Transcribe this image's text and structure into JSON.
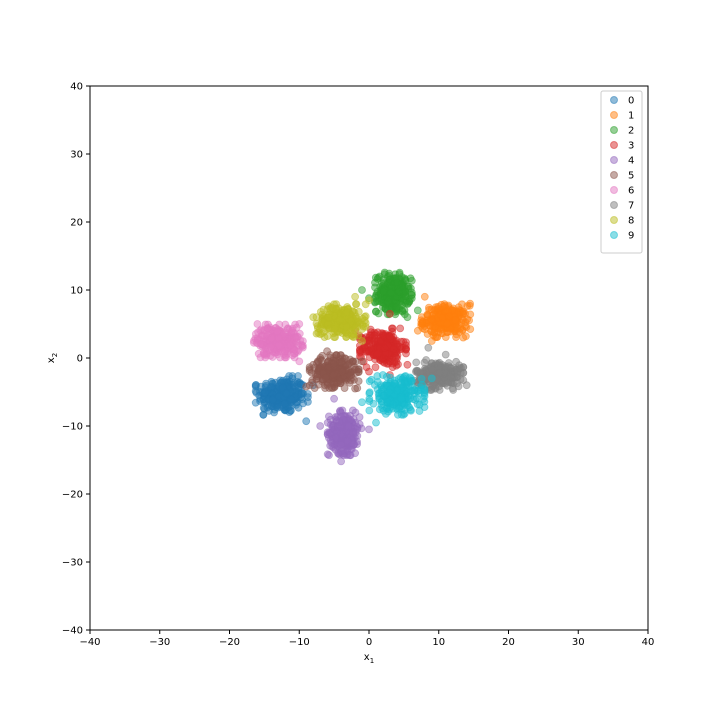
{
  "chart_data": {
    "type": "scatter",
    "title": "",
    "xlabel": "x",
    "xlabel_sub": "1",
    "ylabel": "x",
    "ylabel_sub": "2",
    "xlim": [
      -40,
      40
    ],
    "ylim": [
      -40,
      40
    ],
    "xticks": [
      -40,
      -30,
      -20,
      -10,
      0,
      10,
      20,
      30,
      40
    ],
    "yticks": [
      -40,
      -30,
      -20,
      -10,
      0,
      10,
      20,
      30,
      40
    ],
    "grid": false,
    "legend_position": "top-right",
    "marker_alpha": 0.5,
    "series": [
      {
        "name": "0",
        "color": "#1f77b4",
        "center": [
          -12.5,
          -5.5
        ],
        "spread": [
          1.7,
          1.3
        ],
        "outliers": [
          [
            -9,
            -9.3
          ],
          [
            -15,
            -7.5
          ],
          [
            -8,
            -4
          ],
          [
            -11,
            -3
          ],
          [
            -14,
            -3.5
          ]
        ]
      },
      {
        "name": "1",
        "color": "#ff7f0e",
        "center": [
          11,
          5.5
        ],
        "spread": [
          1.6,
          1.1
        ],
        "outliers": [
          [
            14.5,
            8
          ],
          [
            13.5,
            3
          ],
          [
            8,
            9
          ],
          [
            9,
            2.5
          ],
          [
            7,
            4
          ]
        ]
      },
      {
        "name": "2",
        "color": "#2ca02c",
        "center": [
          3.5,
          9.5
        ],
        "spread": [
          1.2,
          1.4
        ],
        "outliers": [
          [
            0,
            8.8
          ],
          [
            -1,
            10
          ],
          [
            5.5,
            6
          ],
          [
            7,
            7
          ],
          [
            2,
            7.5
          ]
        ]
      },
      {
        "name": "3",
        "color": "#d62728",
        "center": [
          2,
          1.5
        ],
        "spread": [
          1.5,
          1.3
        ],
        "outliers": [
          [
            3,
            6.5
          ],
          [
            -2,
            4
          ],
          [
            5.5,
            -1
          ],
          [
            0,
            -2
          ],
          [
            3,
            -2.5
          ]
        ]
      },
      {
        "name": "4",
        "color": "#9467bd",
        "center": [
          -3.5,
          -11
        ],
        "spread": [
          1.1,
          1.5
        ],
        "outliers": [
          [
            -4,
            -15.2
          ],
          [
            -7,
            -10
          ],
          [
            0,
            -10.5
          ],
          [
            -5,
            -6
          ],
          [
            -2,
            -14
          ]
        ]
      },
      {
        "name": "5",
        "color": "#8c564b",
        "center": [
          -5,
          -2
        ],
        "spread": [
          1.6,
          1.1
        ],
        "outliers": [
          [
            -8,
            -1
          ],
          [
            -2,
            -4.5
          ],
          [
            -6,
            1
          ],
          [
            -9,
            -4.2
          ],
          [
            -1,
            -0.5
          ]
        ]
      },
      {
        "name": "6",
        "color": "#e377c2",
        "center": [
          -13,
          2.5
        ],
        "spread": [
          1.6,
          1.1
        ],
        "outliers": [
          [
            -16,
            5
          ],
          [
            -10,
            5
          ],
          [
            -10,
            -0.5
          ],
          [
            -15,
            0.5
          ],
          [
            -11,
            4
          ]
        ]
      },
      {
        "name": "7",
        "color": "#7f7f7f",
        "center": [
          10,
          -2.5
        ],
        "spread": [
          1.6,
          1.0
        ],
        "outliers": [
          [
            14,
            -4
          ],
          [
            8.5,
            1.5
          ],
          [
            7,
            -4
          ],
          [
            11,
            0.5
          ],
          [
            13,
            -1.5
          ]
        ]
      },
      {
        "name": "8",
        "color": "#bcbd22",
        "center": [
          -4,
          5.5
        ],
        "spread": [
          1.6,
          1.1
        ],
        "outliers": [
          [
            -2,
            9
          ],
          [
            -7,
            3.5
          ],
          [
            -1,
            2.5
          ],
          [
            -8,
            6
          ],
          [
            0,
            8.5
          ]
        ]
      },
      {
        "name": "9",
        "color": "#17becf",
        "center": [
          4,
          -5.5
        ],
        "spread": [
          1.8,
          1.3
        ],
        "outliers": [
          [
            6,
            -3
          ],
          [
            1,
            -9.5
          ],
          [
            9,
            -3
          ],
          [
            2,
            -2.5
          ],
          [
            -1,
            -6.5
          ]
        ]
      }
    ]
  }
}
